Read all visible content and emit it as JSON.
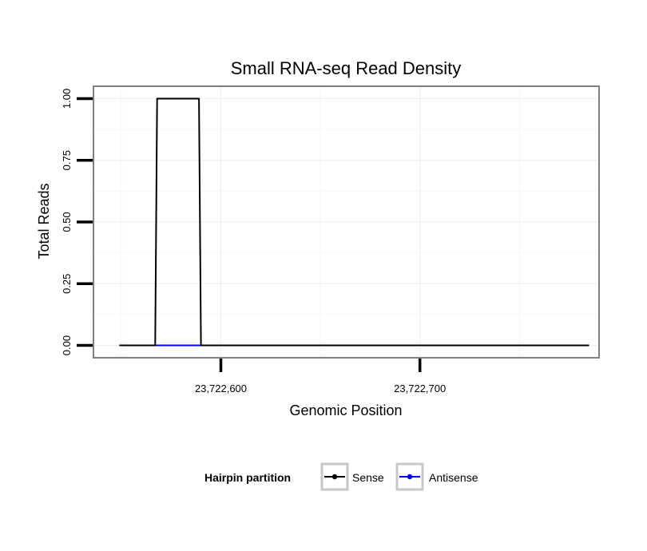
{
  "chart_data": {
    "type": "line",
    "title": "Small RNA-seq Read Density",
    "xlabel": "Genomic Position",
    "ylabel": "Total Reads",
    "xlim": [
      23722536,
      23722790
    ],
    "ylim": [
      -0.05,
      1.05
    ],
    "x_ticks": [
      23722600,
      23722700
    ],
    "x_tick_labels": [
      "23,722,600",
      "23,722,700"
    ],
    "y_ticks": [
      0,
      0.25,
      0.5,
      0.75,
      1.0
    ],
    "y_tick_labels": [
      "0.00",
      "0.25",
      "0.50",
      "0.75",
      "1.00"
    ],
    "grid": true,
    "legend": {
      "title": "Hairpin partition",
      "position": "bottom"
    },
    "series": [
      {
        "name": "Antisense",
        "color": "#0000ff",
        "x": [
          23722549,
          23722567,
          23722568,
          23722569,
          23722570,
          23722785
        ],
        "y": [
          0,
          0,
          0,
          0,
          0,
          0
        ]
      },
      {
        "name": "Sense",
        "color": "#000000",
        "x": [
          23722549,
          23722567,
          23722568,
          23722589,
          23722590,
          23722785
        ],
        "y": [
          0,
          0,
          1,
          1,
          0,
          0
        ]
      }
    ]
  }
}
